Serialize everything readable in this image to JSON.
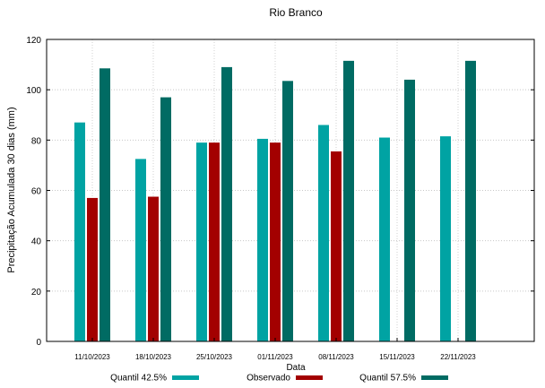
{
  "chart_data": {
    "type": "bar",
    "title": "Rio Branco",
    "xlabel": "Data",
    "ylabel": "Precipitação Acumulada 30 dias (mm)",
    "ylim": [
      0,
      120
    ],
    "yticks": [
      0,
      20,
      40,
      60,
      80,
      100,
      120
    ],
    "grid": true,
    "legend_position": "bottom",
    "categories": [
      "11/10/2023",
      "18/10/2023",
      "25/10/2023",
      "01/11/2023",
      "08/11/2023",
      "15/11/2023",
      "22/11/2023"
    ],
    "series": [
      {
        "name": "Quantil 42.5%",
        "color": "#00a3a3",
        "values": [
          87,
          72.5,
          79,
          80.5,
          86,
          81,
          81.5
        ]
      },
      {
        "name": "Observado",
        "color": "#a30000",
        "values": [
          57,
          57.5,
          79,
          79,
          75.5,
          null,
          null
        ]
      },
      {
        "name": "Quantil 57.5%",
        "color": "#006b63",
        "values": [
          108.5,
          97,
          109,
          103.5,
          111.5,
          104,
          111.5
        ]
      }
    ]
  }
}
